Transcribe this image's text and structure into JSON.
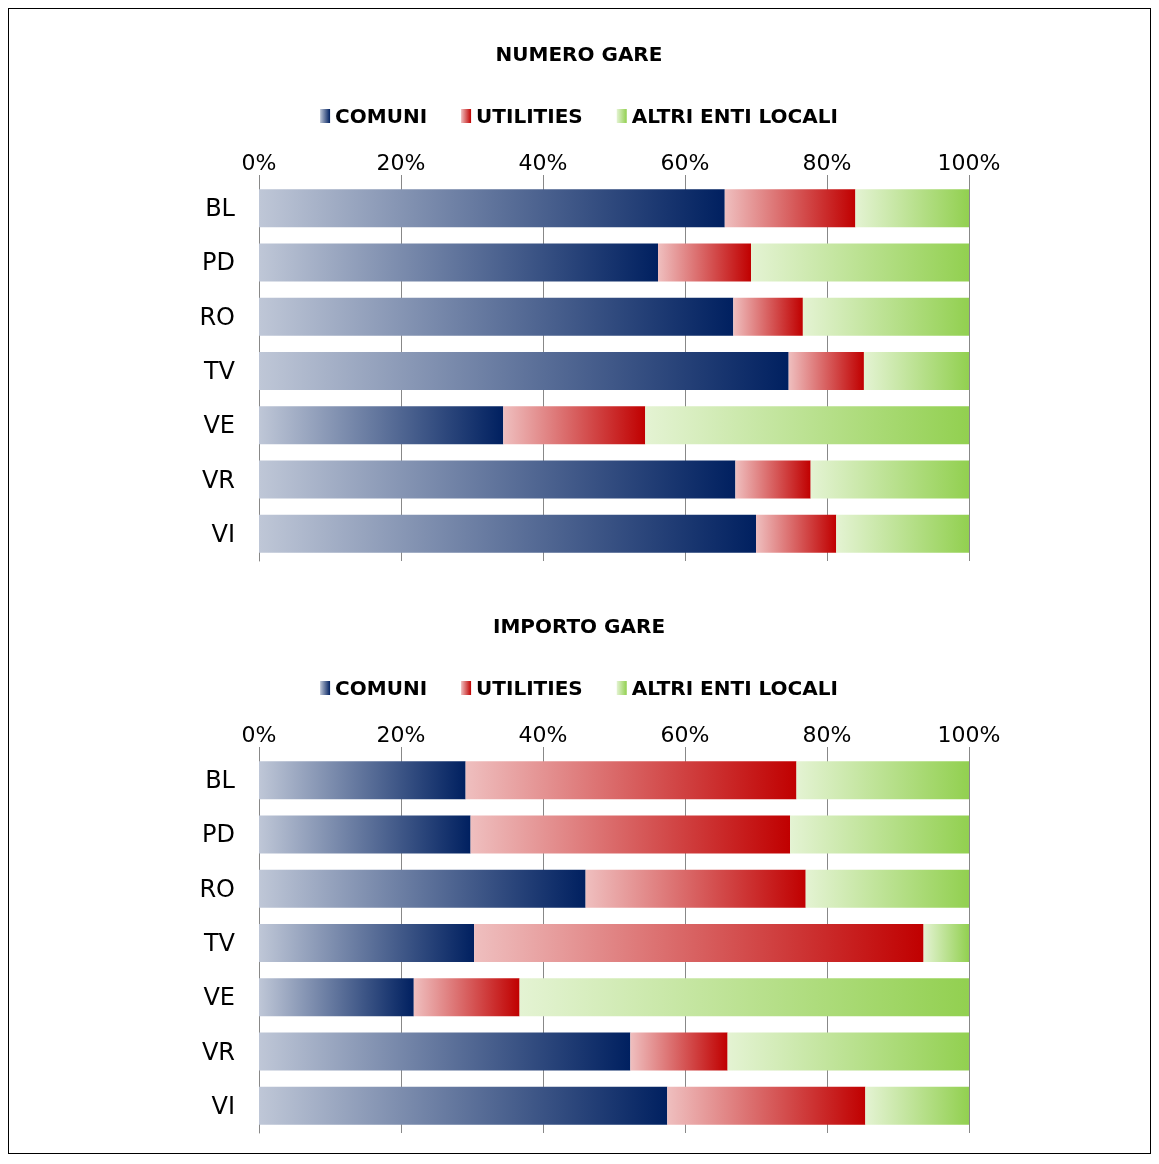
{
  "chart_data": [
    {
      "type": "bar",
      "title": "NUMERO GARE",
      "orientation": "horizontal",
      "stacked": true,
      "legend": "top",
      "grid": "x",
      "categories": [
        "BL",
        "PD",
        "RO",
        "TV",
        "VE",
        "VR",
        "VI"
      ],
      "xlim": [
        0,
        100
      ],
      "xticks": [
        {
          "value": 0,
          "label": "0%"
        },
        {
          "value": 20,
          "label": "20%"
        },
        {
          "value": 40,
          "label": "40%"
        },
        {
          "value": 60,
          "label": "60%"
        },
        {
          "value": 80,
          "label": "80%"
        },
        {
          "value": 100,
          "label": "100%"
        }
      ],
      "series": [
        {
          "name": "COMUNI",
          "color": "#002060",
          "values": [
            65.6,
            56.2,
            66.8,
            74.6,
            34.4,
            67.1,
            70.0
          ]
        },
        {
          "name": "UTILITIES",
          "color": "#c00000",
          "values": [
            18.4,
            13.1,
            9.8,
            10.6,
            20.0,
            10.6,
            11.3
          ]
        },
        {
          "name": "ALTRI ENTI LOCALI",
          "color": "#92d050",
          "values": [
            16.0,
            30.7,
            23.4,
            14.8,
            45.6,
            22.3,
            18.7
          ]
        }
      ]
    },
    {
      "type": "bar",
      "title": "IMPORTO GARE",
      "orientation": "horizontal",
      "stacked": true,
      "legend": "top",
      "grid": "x",
      "categories": [
        "BL",
        "PD",
        "RO",
        "TV",
        "VE",
        "VR",
        "VI"
      ],
      "xlim": [
        0,
        100
      ],
      "xticks": [
        {
          "value": 0,
          "label": "0%"
        },
        {
          "value": 20,
          "label": "20%"
        },
        {
          "value": 40,
          "label": "40%"
        },
        {
          "value": 60,
          "label": "60%"
        },
        {
          "value": 80,
          "label": "80%"
        },
        {
          "value": 100,
          "label": "100%"
        }
      ],
      "series": [
        {
          "name": "COMUNI",
          "color": "#002060",
          "values": [
            29.1,
            29.8,
            46.0,
            30.3,
            21.8,
            52.3,
            57.5
          ]
        },
        {
          "name": "UTILITIES",
          "color": "#c00000",
          "values": [
            46.6,
            45.0,
            31.0,
            63.3,
            14.9,
            13.7,
            27.9
          ]
        },
        {
          "name": "ALTRI ENTI LOCALI",
          "color": "#92d050",
          "values": [
            24.3,
            25.2,
            23.0,
            6.4,
            63.3,
            34.0,
            14.6
          ]
        }
      ]
    }
  ]
}
